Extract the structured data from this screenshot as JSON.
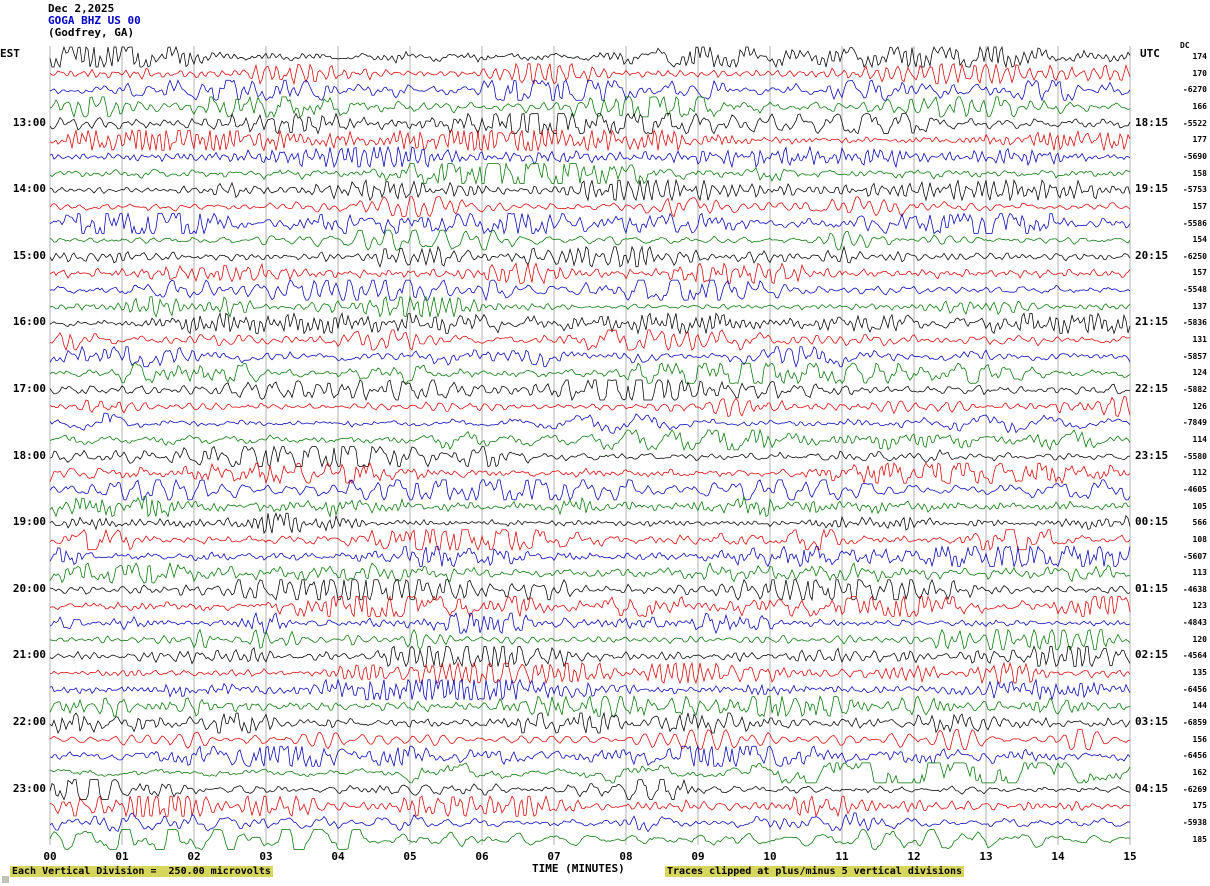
{
  "header": {
    "date": "Dec 2,2025",
    "station": "GOGA BHZ US 00",
    "location": "(Godfrey, GA)",
    "left_tz": "EST",
    "right_tz": "UTC",
    "dc_label": "DC"
  },
  "axis": {
    "xlabel": "TIME (MINUTES)",
    "ticks": [
      "00",
      "01",
      "02",
      "03",
      "04",
      "05",
      "06",
      "07",
      "08",
      "09",
      "10",
      "11",
      "12",
      "13",
      "14",
      "15"
    ]
  },
  "footer": {
    "left_note": "Each Vertical Division =  250.00 microvolts",
    "right_note": "Traces clipped at plus/minus 5 vertical divisions"
  },
  "colors": {
    "trace_cycle": [
      "#000000",
      "#dd0000",
      "#0000bb",
      "#007700"
    ],
    "grid": "#b0b0b0",
    "station_text": "#0000cc",
    "highlight": "#d6d65c"
  },
  "chart_data": {
    "type": "line",
    "title": "GOGA BHZ US 00 (Godfrey, GA) webicorder seismogram, Dec 2,2025",
    "xlabel": "TIME (MINUTES)",
    "xlim": [
      0,
      15
    ],
    "x_ticks": [
      "00",
      "01",
      "02",
      "03",
      "04",
      "05",
      "06",
      "07",
      "08",
      "09",
      "10",
      "11",
      "12",
      "13",
      "14",
      "15"
    ],
    "minutes_per_trace": 15,
    "traces_per_hour": 4,
    "trace_count": 48,
    "color_cycle": [
      "black",
      "red",
      "blue",
      "green"
    ],
    "left_time_labels_est": [
      "13:00",
      "14:00",
      "15:00",
      "16:00",
      "17:00",
      "18:00",
      "19:00",
      "20:00",
      "21:00",
      "22:00",
      "23:00"
    ],
    "right_time_labels_utc": [
      "18:15",
      "19:15",
      "20:15",
      "21:15",
      "22:15",
      "23:15",
      "00:15",
      "01:15",
      "02:15",
      "03:15",
      "04:15"
    ],
    "scale_note": "Each Vertical Division = 250.00 microvolts",
    "clip_note": "Traces clipped at plus/minus 5 vertical divisions",
    "waveform": "continuous seismic background noise; individual sample values not resolvable from image",
    "rows": [
      {
        "est": "",
        "utc": "",
        "dc": "174"
      },
      {
        "est": "",
        "utc": "",
        "dc": "170"
      },
      {
        "est": "",
        "utc": "",
        "dc": "-6270"
      },
      {
        "est": "",
        "utc": "",
        "dc": "166"
      },
      {
        "est": "13:00",
        "utc": "18:15",
        "dc": "-5522"
      },
      {
        "est": "",
        "utc": "",
        "dc": "177"
      },
      {
        "est": "",
        "utc": "",
        "dc": "-5690"
      },
      {
        "est": "",
        "utc": "",
        "dc": "158"
      },
      {
        "est": "14:00",
        "utc": "19:15",
        "dc": "-5753"
      },
      {
        "est": "",
        "utc": "",
        "dc": "157"
      },
      {
        "est": "",
        "utc": "",
        "dc": "-5586"
      },
      {
        "est": "",
        "utc": "",
        "dc": "154"
      },
      {
        "est": "15:00",
        "utc": "20:15",
        "dc": "-6250"
      },
      {
        "est": "",
        "utc": "",
        "dc": "157"
      },
      {
        "est": "",
        "utc": "",
        "dc": "-5548"
      },
      {
        "est": "",
        "utc": "",
        "dc": "137"
      },
      {
        "est": "16:00",
        "utc": "21:15",
        "dc": "-5836"
      },
      {
        "est": "",
        "utc": "",
        "dc": "131"
      },
      {
        "est": "",
        "utc": "",
        "dc": "-5857"
      },
      {
        "est": "",
        "utc": "",
        "dc": "124"
      },
      {
        "est": "17:00",
        "utc": "22:15",
        "dc": "-5882"
      },
      {
        "est": "",
        "utc": "",
        "dc": "126"
      },
      {
        "est": "",
        "utc": "",
        "dc": "-7849"
      },
      {
        "est": "",
        "utc": "",
        "dc": "114"
      },
      {
        "est": "18:00",
        "utc": "23:15",
        "dc": "-5580"
      },
      {
        "est": "",
        "utc": "",
        "dc": "112"
      },
      {
        "est": "",
        "utc": "",
        "dc": "-4605"
      },
      {
        "est": "",
        "utc": "",
        "dc": "105"
      },
      {
        "est": "19:00",
        "utc": "00:15",
        "dc": "566"
      },
      {
        "est": "",
        "utc": "",
        "dc": "108"
      },
      {
        "est": "",
        "utc": "",
        "dc": "-5607"
      },
      {
        "est": "",
        "utc": "",
        "dc": "113"
      },
      {
        "est": "20:00",
        "utc": "01:15",
        "dc": "-4638"
      },
      {
        "est": "",
        "utc": "",
        "dc": "123"
      },
      {
        "est": "",
        "utc": "",
        "dc": "-4843"
      },
      {
        "est": "",
        "utc": "",
        "dc": "120"
      },
      {
        "est": "21:00",
        "utc": "02:15",
        "dc": "-4564"
      },
      {
        "est": "",
        "utc": "",
        "dc": "135"
      },
      {
        "est": "",
        "utc": "",
        "dc": "-6456"
      },
      {
        "est": "",
        "utc": "",
        "dc": "144"
      },
      {
        "est": "22:00",
        "utc": "03:15",
        "dc": "-6859"
      },
      {
        "est": "",
        "utc": "",
        "dc": "156"
      },
      {
        "est": "",
        "utc": "",
        "dc": "-6456"
      },
      {
        "est": "",
        "utc": "",
        "dc": "162"
      },
      {
        "est": "23:00",
        "utc": "04:15",
        "dc": "-6269"
      },
      {
        "est": "",
        "utc": "",
        "dc": "175"
      },
      {
        "est": "",
        "utc": "",
        "dc": "-5938"
      },
      {
        "est": "",
        "utc": "",
        "dc": "185"
      }
    ]
  }
}
